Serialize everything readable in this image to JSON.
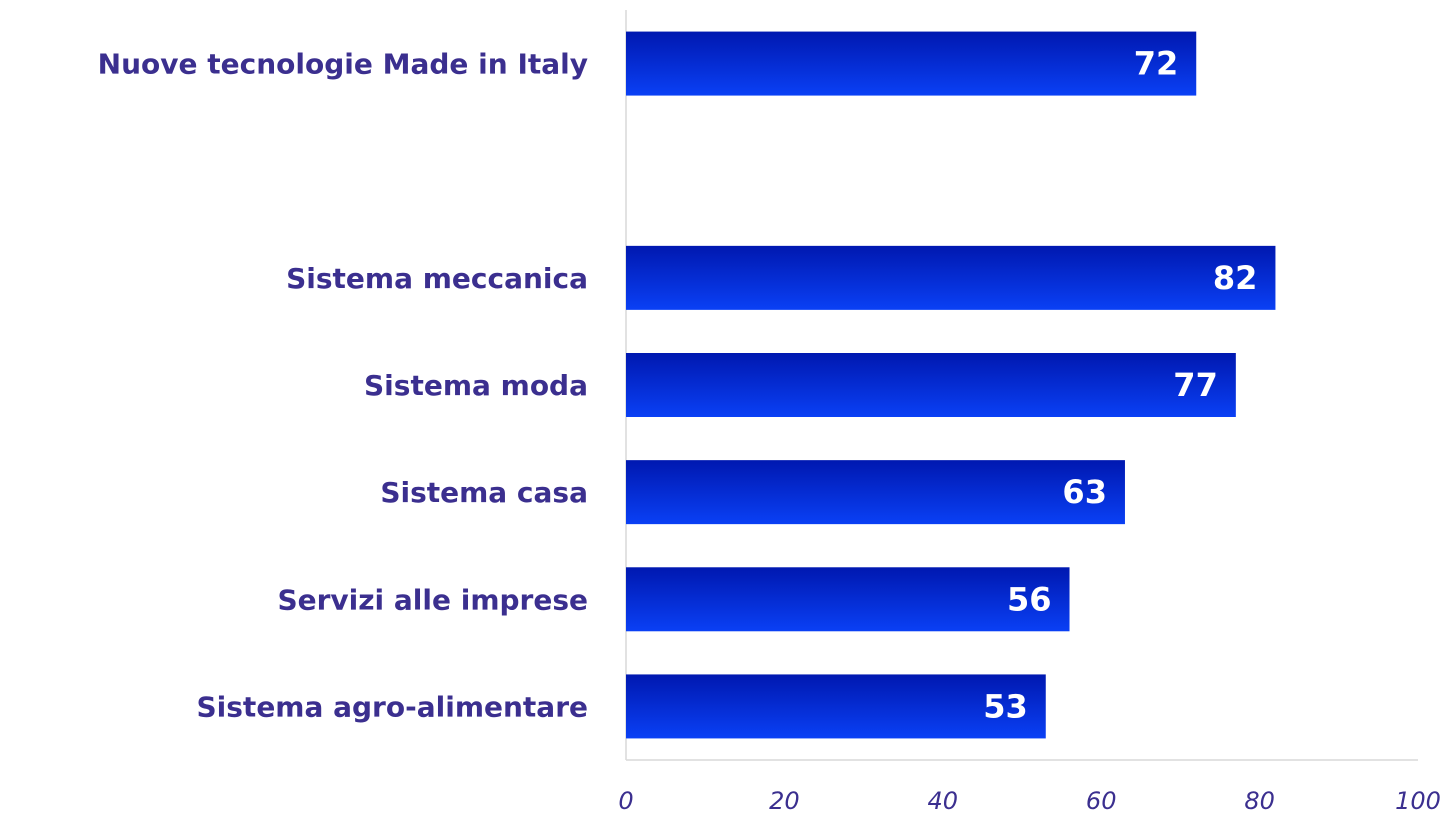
{
  "chart_data": {
    "type": "bar",
    "orientation": "horizontal",
    "categories": [
      "Nuove tecnologie Made in Italy",
      null,
      "Sistema meccanica",
      "Sistema moda",
      "Sistema casa",
      "Servizi alle imprese",
      "Sistema agro-alimentare"
    ],
    "values": [
      72,
      null,
      82,
      77,
      63,
      56,
      53
    ],
    "color": "#0a30e0",
    "xlim": [
      0,
      100
    ],
    "xticks": [
      0,
      20,
      40,
      60,
      80,
      100
    ],
    "grid": false
  }
}
